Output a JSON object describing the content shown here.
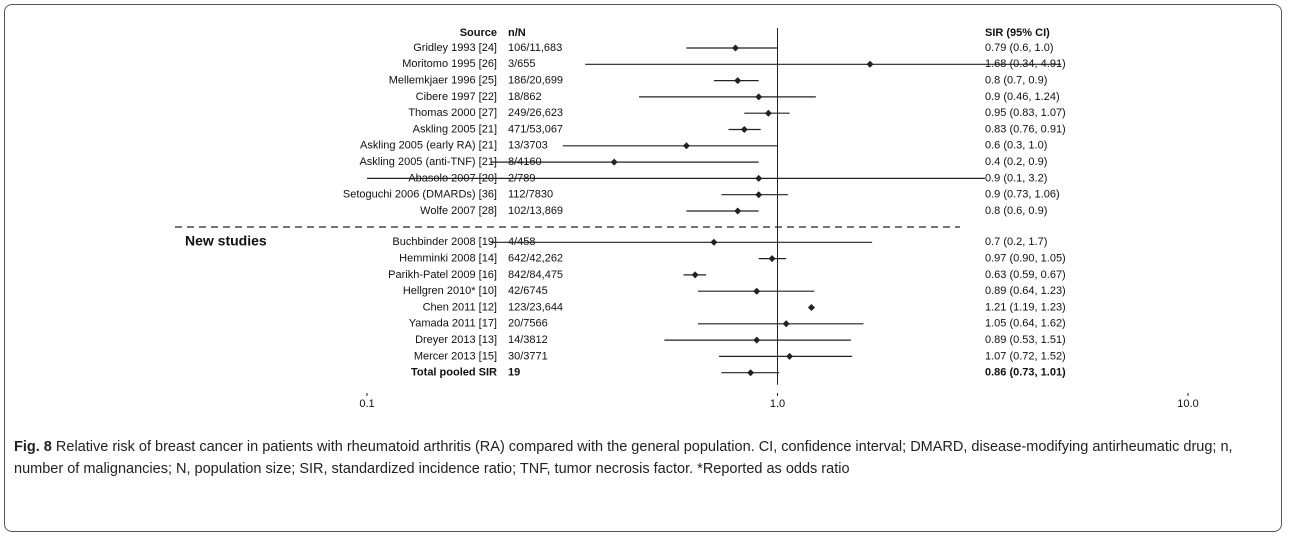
{
  "chart_data": {
    "type": "forest",
    "headers": {
      "source": "Source",
      "n": "n/N",
      "sir": "SIR (95% CI)"
    },
    "group_label": "New studies",
    "categories": [
      "Gridley 1993 [24]",
      "Moritomo 1995 [26]",
      "Mellemkjaer 1996 [25]",
      "Cibere 1997 [22]",
      "Thomas 2000 [27]",
      "Askling 2005 [21]",
      "Askling 2005 (early RA) [21]",
      "Askling 2005 (anti-TNF) [21]",
      "Abasolo 2007 [20]",
      "Setoguchi 2006 (DMARDs) [36]",
      "Wolfe 2007 [28]",
      "Buchbinder 2008 [19]",
      "Hemminki 2008 [14]",
      "Parikh-Patel 2009 [16]",
      "Hellgren 2010* [10]",
      "Chen 2011 [12]",
      "Yamada 2011 [17]",
      "Dreyer 2013 [13]",
      "Mercer 2013 [15]",
      "Total pooled SIR"
    ],
    "n_labels": [
      "106/11,683",
      "3/655",
      "186/20,699",
      "18/862",
      "249/26,623",
      "471/53,067",
      "13/3703",
      "8/4160",
      "2/789",
      "112/7830",
      "102/13,869",
      "4/458",
      "642/42,262",
      "842/84,475",
      "42/6745",
      "123/23,644",
      "20/7566",
      "14/3812",
      "30/3771",
      "19"
    ],
    "values": [
      0.79,
      1.68,
      0.8,
      0.9,
      0.95,
      0.83,
      0.6,
      0.4,
      0.9,
      0.9,
      0.8,
      0.7,
      0.97,
      0.63,
      0.89,
      1.21,
      1.05,
      0.89,
      1.07,
      0.86
    ],
    "lower": [
      0.6,
      0.34,
      0.7,
      0.46,
      0.83,
      0.76,
      0.3,
      0.2,
      0.1,
      0.73,
      0.6,
      0.2,
      0.9,
      0.59,
      0.64,
      1.19,
      0.64,
      0.53,
      0.72,
      0.73
    ],
    "upper": [
      1.0,
      4.91,
      0.9,
      1.24,
      1.07,
      0.91,
      1.0,
      0.9,
      3.2,
      1.06,
      0.9,
      1.7,
      1.05,
      0.67,
      1.23,
      1.23,
      1.62,
      1.51,
      1.52,
      1.01
    ],
    "value_labels": [
      "0.79 (0.6, 1.0)",
      "1.68 (0.34, 4.91)",
      "0.8 (0.7, 0.9)",
      "0.9 (0.46, 1.24)",
      "0.95 (0.83, 1.07)",
      "0.83 (0.76, 0.91)",
      "0.6 (0.3, 1.0)",
      "0.4 (0.2, 0.9)",
      "0.9 (0.1, 3.2)",
      "0.9 (0.73, 1.06)",
      "0.8 (0.6, 0.9)",
      "0.7 (0.2, 1.7)",
      "0.97 (0.90, 1.05)",
      "0.63 (0.59, 0.67)",
      "0.89 (0.64, 1.23)",
      "1.21 (1.19, 1.23)",
      "1.05 (0.64, 1.62)",
      "0.89 (0.53, 1.51)",
      "1.07 (0.72, 1.52)",
      "0.86 (0.73, 1.01)"
    ],
    "xscale": "log",
    "xlim": [
      0.1,
      10
    ],
    "xticks": [
      0.1,
      {
        "value": 1,
        "label": "1.0"
      },
      {
        "value": 10,
        "label": "10.0"
      }
    ],
    "reference": 1,
    "color": "#222222"
  },
  "caption": {
    "label": "Fig. 8",
    "text": "Relative risk of breast cancer in patients with rheumatoid arthritis (RA) compared with the general population. CI, confidence interval; DMARD, disease-modifying antirheumatic drug; n, number of malignancies; N, population size; SIR, standardized incidence ratio; TNF, tumor necrosis factor. *Reported as odds ratio"
  }
}
